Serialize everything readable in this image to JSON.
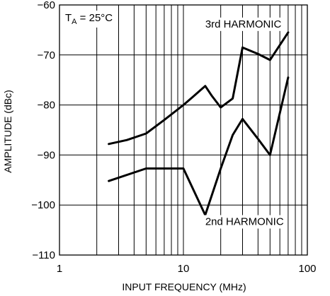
{
  "chart_data": {
    "type": "line",
    "xlabel": "INPUT FREQUENCY (MHz)",
    "ylabel": "AMPLITUDE (dBc)",
    "xscale": "log",
    "xlim": [
      1,
      100
    ],
    "ylim": [
      -110,
      -60
    ],
    "xticks": [
      1,
      10,
      100
    ],
    "xtick_labels": [
      "1",
      "10",
      "100"
    ],
    "yticks": [
      -60,
      -70,
      -80,
      -90,
      -100,
      -110
    ],
    "ytick_labels": [
      "−60",
      "−70",
      "−80",
      "−90",
      "−100",
      "−110"
    ],
    "grid": true,
    "annotation": {
      "prefix": "T",
      "subscript": "A",
      "suffix": " = 25°C"
    },
    "series": [
      {
        "name": "3rd HARMONIC",
        "x": [
          2.5,
          3.5,
          5,
          7,
          10,
          12,
          15,
          17,
          20,
          25,
          30,
          40,
          50,
          70
        ],
        "y": [
          -87.8,
          -87.0,
          -85.7,
          -83.0,
          -80.0,
          -78.3,
          -76.2,
          -78.2,
          -80.5,
          -78.7,
          -68.5,
          -69.8,
          -71.0,
          -65.5
        ]
      },
      {
        "name": "2nd HARMONIC",
        "x": [
          2.5,
          5,
          10,
          15,
          20,
          25,
          30,
          40,
          50,
          70
        ],
        "y": [
          -95.2,
          -92.7,
          -92.7,
          -102.0,
          -92.7,
          -86.0,
          -82.8,
          -86.8,
          -90.0,
          -74.5
        ]
      }
    ]
  }
}
